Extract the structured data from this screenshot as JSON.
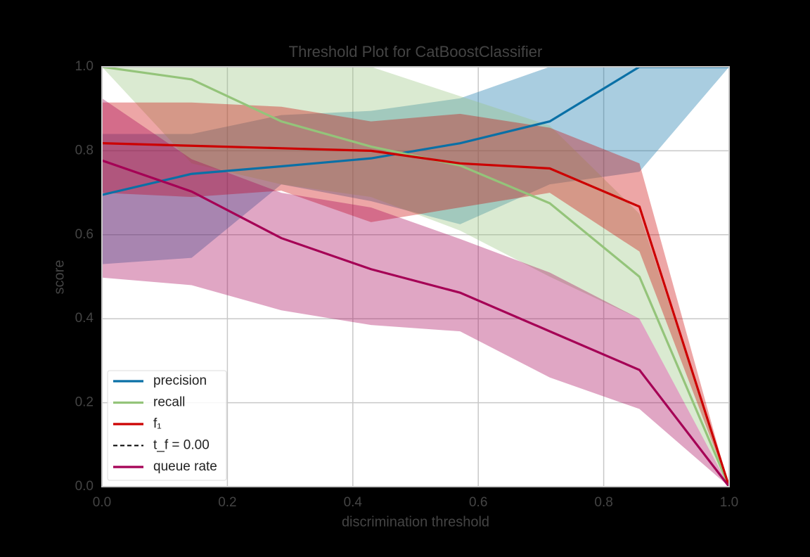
{
  "chart_data": {
    "type": "line",
    "title": "Threshold Plot for CatBoostClassifier",
    "x_label": "discrimination threshold",
    "y_label": "score",
    "x": [
      0,
      0.143,
      0.286,
      0.429,
      0.571,
      0.714,
      0.857,
      1.0
    ],
    "series": [
      {
        "name": "precision",
        "color": "#0a70a6",
        "values": [
          0.695,
          0.745,
          0.763,
          0.782,
          0.818,
          0.87,
          1.0,
          1.0
        ],
        "upper": [
          0.84,
          0.84,
          0.885,
          0.895,
          0.925,
          1.0,
          1.0,
          1.0
        ],
        "lower": [
          0.53,
          0.545,
          0.72,
          0.68,
          0.625,
          0.72,
          0.75,
          1.0
        ]
      },
      {
        "name": "recall",
        "color": "#94c47a",
        "values": [
          1.0,
          0.97,
          0.87,
          0.81,
          0.765,
          0.675,
          0.5,
          0.0
        ],
        "upper": [
          1.0,
          1.0,
          1.0,
          1.0,
          0.93,
          0.86,
          0.65,
          0.0
        ],
        "lower": [
          1.0,
          0.77,
          0.72,
          0.69,
          0.61,
          0.5,
          0.4,
          0.0
        ]
      },
      {
        "name": "f₁",
        "color": "#cc0000",
        "values": [
          0.818,
          0.812,
          0.806,
          0.8,
          0.77,
          0.758,
          0.667,
          0.0
        ],
        "upper": [
          0.915,
          0.915,
          0.905,
          0.87,
          0.888,
          0.855,
          0.77,
          0.0
        ],
        "lower": [
          0.7,
          0.69,
          0.705,
          0.63,
          0.665,
          0.7,
          0.56,
          0.0
        ]
      },
      {
        "name": "queue rate",
        "color": "#a50055",
        "values": [
          0.777,
          0.703,
          0.592,
          0.518,
          0.462,
          0.37,
          0.278,
          0.0
        ],
        "upper": [
          0.925,
          0.78,
          0.7,
          0.665,
          0.59,
          0.51,
          0.4,
          0.0
        ],
        "lower": [
          0.498,
          0.48,
          0.42,
          0.385,
          0.37,
          0.26,
          0.185,
          0.0
        ]
      }
    ],
    "threshold": {
      "name": "t_f = 0.00",
      "value": 0,
      "color": "#000000"
    },
    "xlim": [
      0,
      1
    ],
    "ylim": [
      0,
      1
    ],
    "xticks": [
      {
        "value": 0,
        "label": "0.0"
      },
      0.2,
      0.4,
      0.6,
      0.8,
      {
        "value": 1,
        "label": "1.0"
      }
    ],
    "yticks": [
      {
        "value": 0,
        "label": "0.0"
      },
      0.2,
      0.4,
      0.6,
      0.8,
      {
        "value": 1,
        "label": "1.0"
      }
    ],
    "grid": true,
    "legend": "lower left"
  }
}
